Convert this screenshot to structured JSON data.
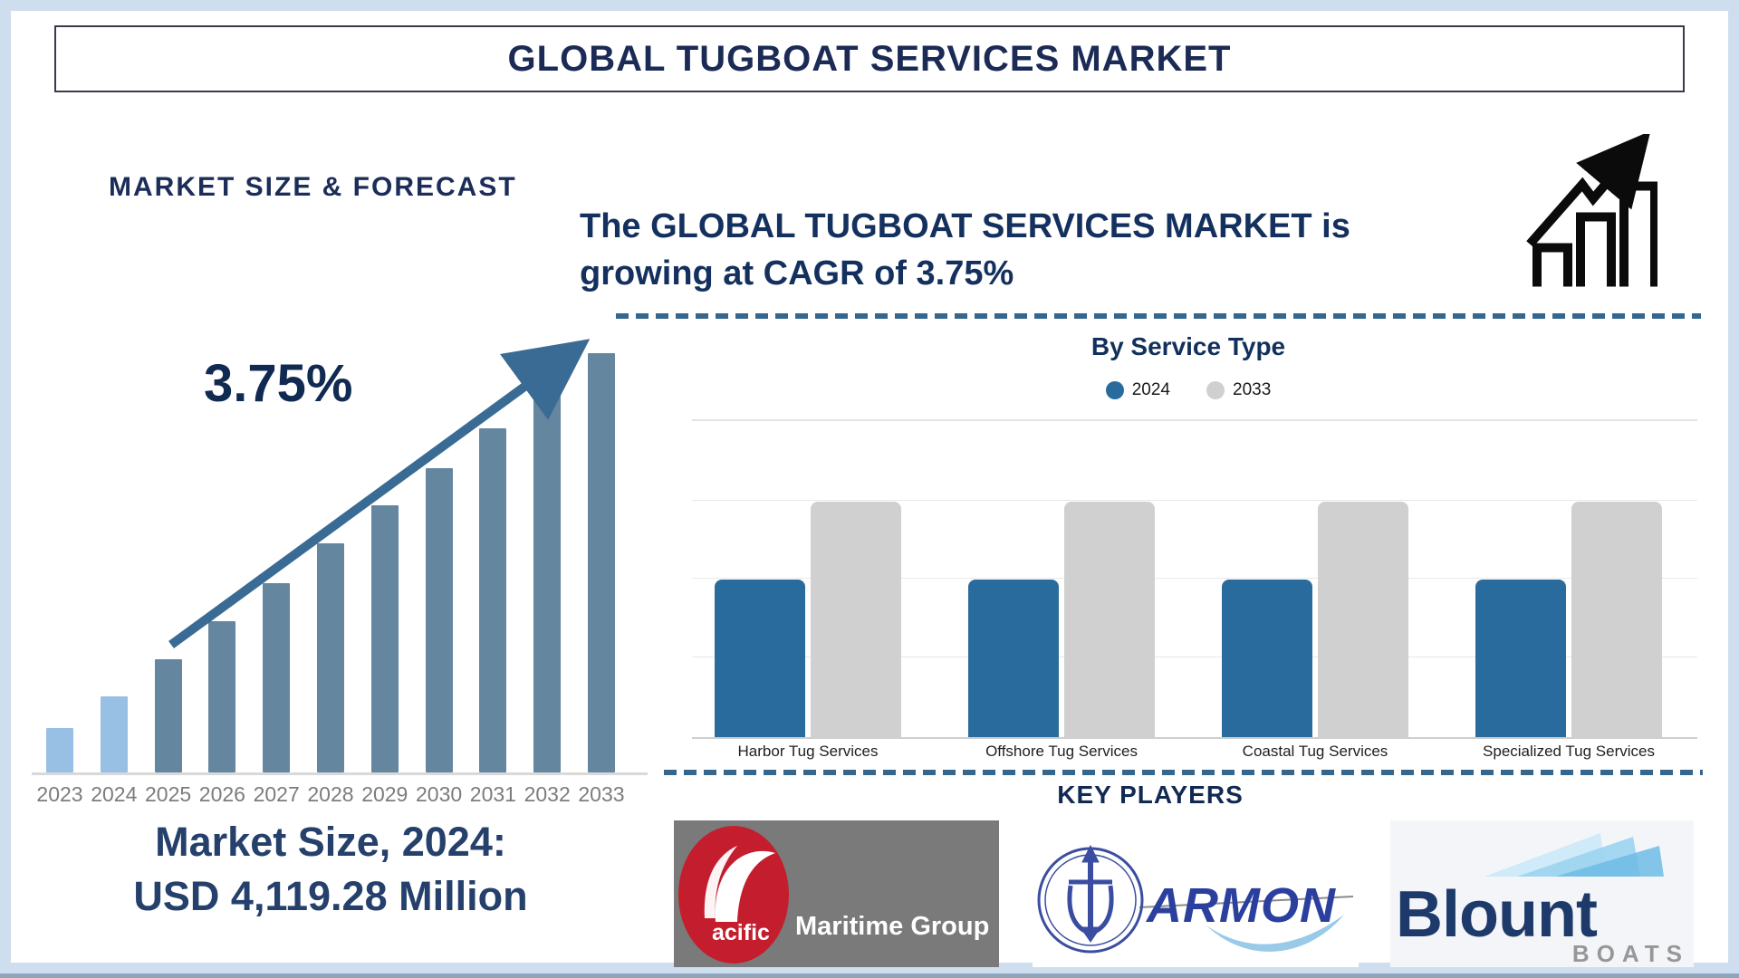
{
  "page": {
    "title": "GLOBAL TUGBOAT SERVICES MARKET"
  },
  "left_section": {
    "heading": "MARKET SIZE & FORECAST",
    "cagr_label": "3.75%",
    "market_size_line1": "Market Size, 2024:",
    "market_size_line2": "USD 4,119.28 Million"
  },
  "right_section": {
    "headline_line1": "The GLOBAL TUGBOAT SERVICES MARKET is",
    "headline_line2": "growing at CAGR of 3.75%",
    "by_service_title": "By Service Type",
    "legend": [
      {
        "label": "2024",
        "color": "#2a6b9d"
      },
      {
        "label": "2033",
        "color": "#d0d0d0"
      }
    ],
    "key_players_title": "KEY PLAYERS"
  },
  "logos": {
    "pacific": {
      "prefix": "acific",
      "name": "Maritime Group"
    },
    "armon": {
      "name": "ARMON"
    },
    "blount": {
      "name": "Blount",
      "sub": "BOATS"
    }
  },
  "colors": {
    "navy_text": "#14305e",
    "light_bar": "#97c0e4",
    "dark_bar": "#64869f",
    "arrow": "#3a6b94",
    "blue_2024": "#2a6b9d",
    "gray_2033": "#d0d0d0",
    "dash_line": "#35668e",
    "pacific_red": "#c41e2e",
    "blount_navy": "#1d3a6b"
  },
  "chart_data": [
    {
      "type": "bar",
      "title": "MARKET SIZE & FORECAST",
      "categories": [
        "2023",
        "2024",
        "2025",
        "2026",
        "2027",
        "2028",
        "2029",
        "2030",
        "2031",
        "2032",
        "2033"
      ],
      "values": [
        49,
        84,
        125,
        167,
        209,
        253,
        295,
        336,
        380,
        419,
        463
      ],
      "value_unit": "relative height (stylized, no y-axis shown); market size 2024 = USD 4,119.28 Million, CAGR 3.75%",
      "bar_colors": [
        "#97c0e4",
        "#97c0e4",
        "#64869f",
        "#64869f",
        "#64869f",
        "#64869f",
        "#64869f",
        "#64869f",
        "#64869f",
        "#64869f",
        "#64869f"
      ],
      "xlabel": "",
      "ylabel": "",
      "grid": false,
      "legend_position": "none"
    },
    {
      "type": "bar",
      "title": "By Service Type",
      "categories": [
        "Harbor Tug Services",
        "Offshore Tug Services",
        "Coastal Tug Services",
        "Specialized Tug Services"
      ],
      "series": [
        {
          "name": "2024",
          "values": [
            67,
            67,
            67,
            67
          ],
          "color": "#2a6b9d"
        },
        {
          "name": "2033",
          "values": [
            100,
            100,
            100,
            100
          ],
          "color": "#d0d0d0"
        }
      ],
      "value_unit": "relative height (no y-axis shown)",
      "grid": true,
      "legend_position": "top"
    }
  ]
}
